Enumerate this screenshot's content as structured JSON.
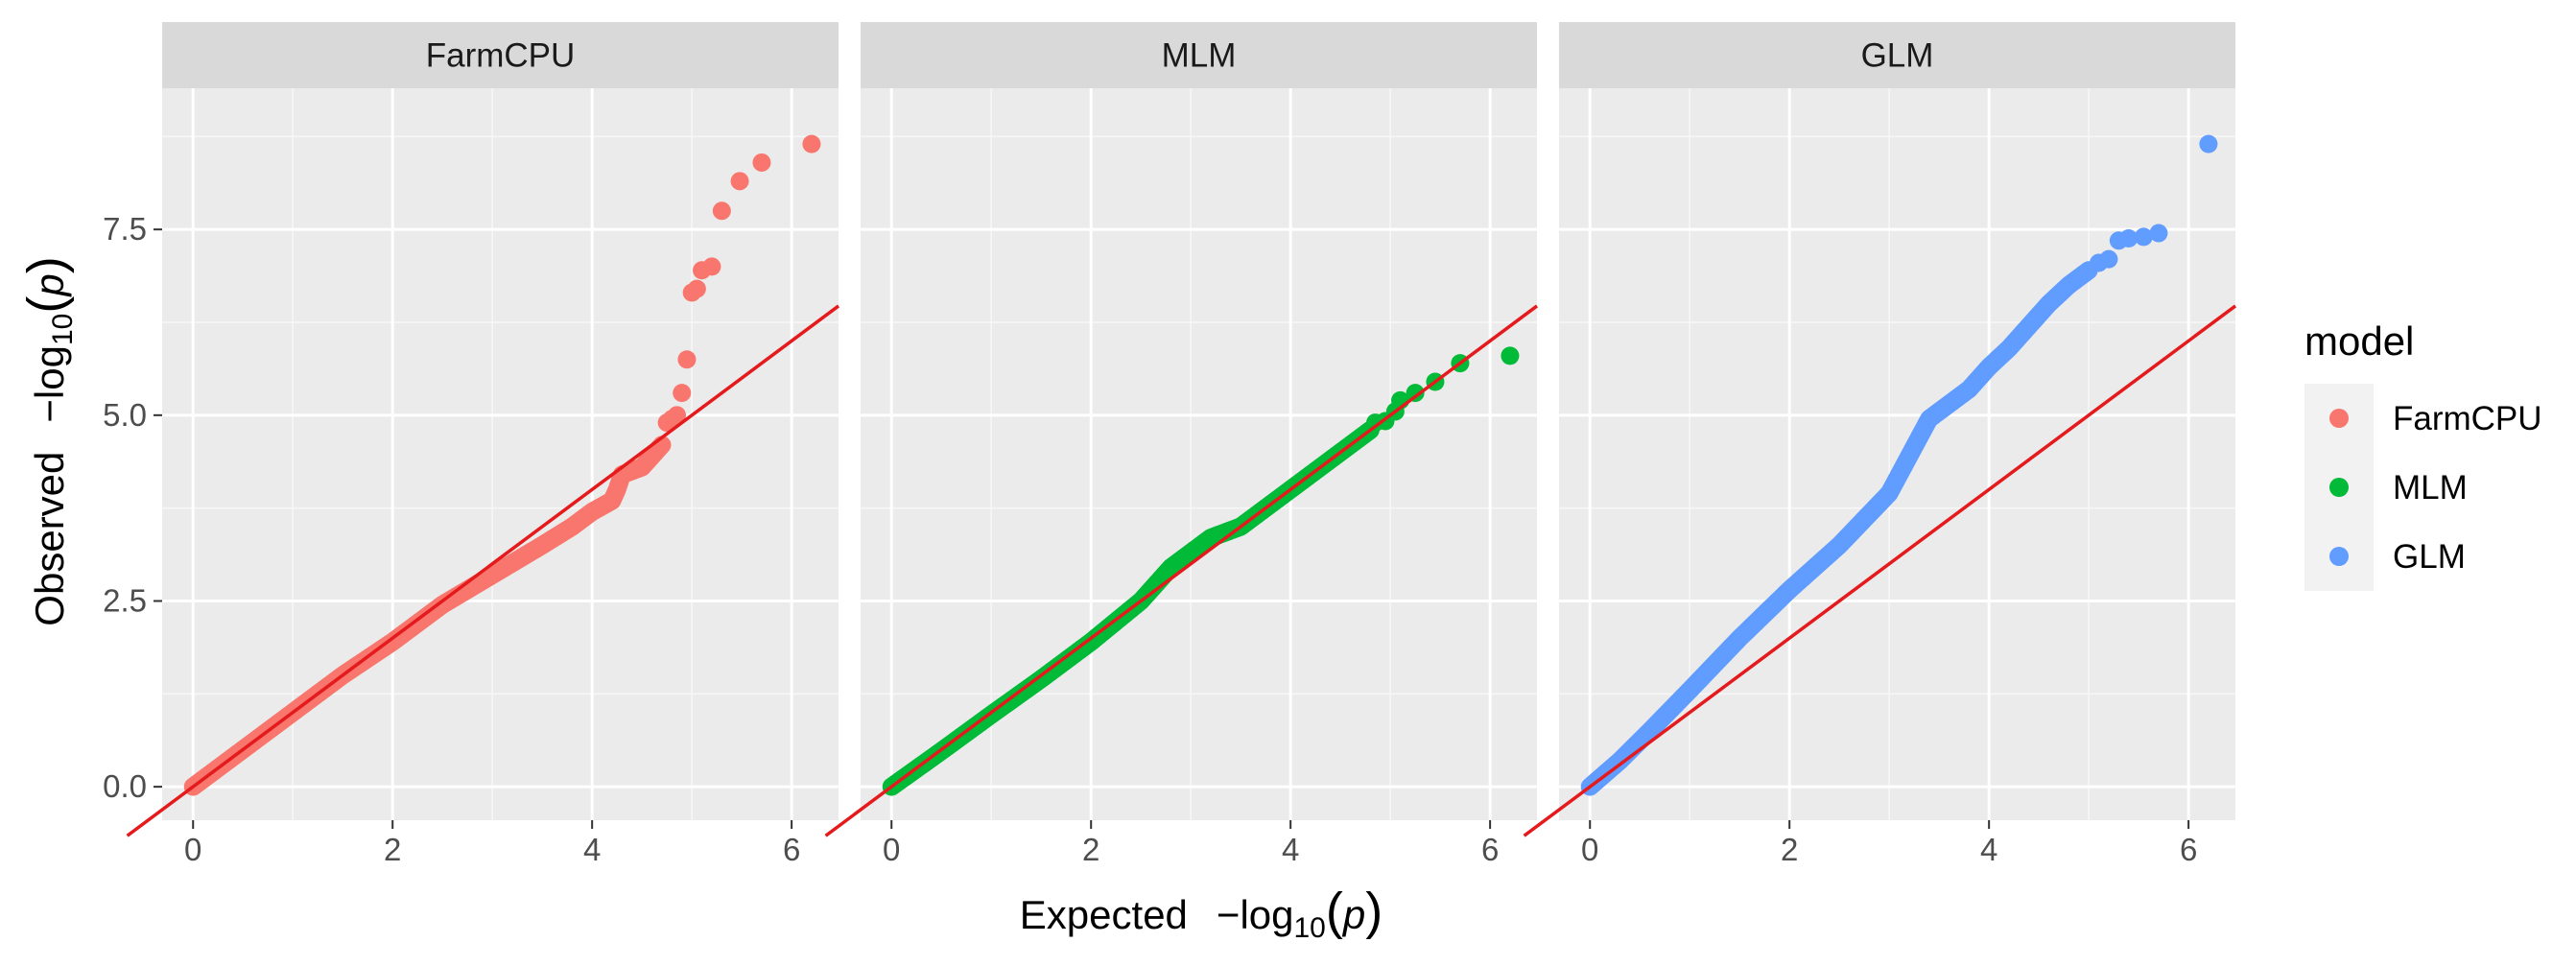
{
  "chart_data": {
    "type": "scatter",
    "facet_strips": [
      "FarmCPU",
      "MLM",
      "GLM"
    ],
    "xlabel": {
      "main": "Expected",
      "minus": "−log",
      "sub": "10",
      "open": "(",
      "var": "p",
      "close": ")"
    },
    "ylabel": {
      "main": "Observed",
      "minus": "−log",
      "sub": "10",
      "open": "(",
      "var": "p",
      "close": ")"
    },
    "xlim": [
      -0.31,
      6.47
    ],
    "ylim": [
      -0.45,
      9.4
    ],
    "x_ticks": [
      0,
      2,
      4,
      6
    ],
    "x_tick_labels": [
      "0",
      "2",
      "4",
      "6"
    ],
    "y_ticks": [
      0,
      2.5,
      5,
      7.5
    ],
    "y_tick_labels": [
      "0.0",
      "2.5",
      "5.0",
      "7.5"
    ],
    "reference_line": {
      "slope": 1,
      "intercept": 0,
      "color": "#e41a1c"
    },
    "grid": true,
    "legend": {
      "title": "model",
      "position": "right",
      "entries": [
        "FarmCPU",
        "MLM",
        "GLM"
      ]
    },
    "series": [
      {
        "name": "FarmCPU",
        "color": "#f8766d",
        "curve": [
          [
            0,
            0
          ],
          [
            0.5,
            0.5
          ],
          [
            1,
            1
          ],
          [
            1.5,
            1.5
          ],
          [
            2,
            1.95
          ],
          [
            2.5,
            2.45
          ],
          [
            3,
            2.85
          ],
          [
            3.5,
            3.25
          ],
          [
            3.8,
            3.5
          ],
          [
            4,
            3.7
          ],
          [
            4.2,
            3.85
          ],
          [
            4.25,
            4.0
          ],
          [
            4.3,
            4.2
          ],
          [
            4.5,
            4.3
          ],
          [
            4.6,
            4.45
          ],
          [
            4.7,
            4.6
          ]
        ],
        "outliers": [
          [
            4.75,
            4.9
          ],
          [
            4.8,
            4.95
          ],
          [
            4.85,
            5.0
          ],
          [
            4.9,
            5.3
          ],
          [
            4.95,
            5.75
          ],
          [
            5.0,
            6.65
          ],
          [
            5.05,
            6.7
          ],
          [
            5.1,
            6.95
          ],
          [
            5.2,
            7.0
          ],
          [
            5.3,
            7.75
          ],
          [
            5.48,
            8.15
          ],
          [
            5.7,
            8.4
          ],
          [
            6.2,
            8.65
          ]
        ]
      },
      {
        "name": "MLM",
        "color": "#00ba38",
        "curve": [
          [
            0,
            0
          ],
          [
            0.5,
            0.48
          ],
          [
            1,
            0.97
          ],
          [
            1.5,
            1.45
          ],
          [
            2,
            1.95
          ],
          [
            2.5,
            2.5
          ],
          [
            2.8,
            2.95
          ],
          [
            3,
            3.15
          ],
          [
            3.2,
            3.35
          ],
          [
            3.5,
            3.5
          ],
          [
            3.8,
            3.8
          ],
          [
            4,
            4.0
          ],
          [
            4.3,
            4.3
          ],
          [
            4.6,
            4.6
          ],
          [
            4.8,
            4.8
          ]
        ],
        "outliers": [
          [
            4.85,
            4.9
          ],
          [
            4.95,
            4.92
          ],
          [
            5.05,
            5.05
          ],
          [
            5.1,
            5.2
          ],
          [
            5.25,
            5.3
          ],
          [
            5.45,
            5.45
          ],
          [
            5.7,
            5.7
          ],
          [
            6.2,
            5.8
          ]
        ]
      },
      {
        "name": "GLM",
        "color": "#619cff",
        "curve": [
          [
            0,
            0
          ],
          [
            0.3,
            0.35
          ],
          [
            0.6,
            0.75
          ],
          [
            1,
            1.3
          ],
          [
            1.5,
            2.0
          ],
          [
            2,
            2.65
          ],
          [
            2.5,
            3.25
          ],
          [
            3,
            3.95
          ],
          [
            3.2,
            4.45
          ],
          [
            3.4,
            4.95
          ],
          [
            3.6,
            5.15
          ],
          [
            3.8,
            5.35
          ],
          [
            4,
            5.65
          ],
          [
            4.2,
            5.9
          ],
          [
            4.4,
            6.2
          ],
          [
            4.6,
            6.5
          ],
          [
            4.8,
            6.75
          ],
          [
            5.0,
            6.95
          ]
        ],
        "outliers": [
          [
            5.1,
            7.05
          ],
          [
            5.2,
            7.1
          ],
          [
            5.3,
            7.35
          ],
          [
            5.4,
            7.38
          ],
          [
            5.55,
            7.4
          ],
          [
            5.7,
            7.45
          ],
          [
            6.2,
            8.65
          ]
        ]
      }
    ]
  }
}
